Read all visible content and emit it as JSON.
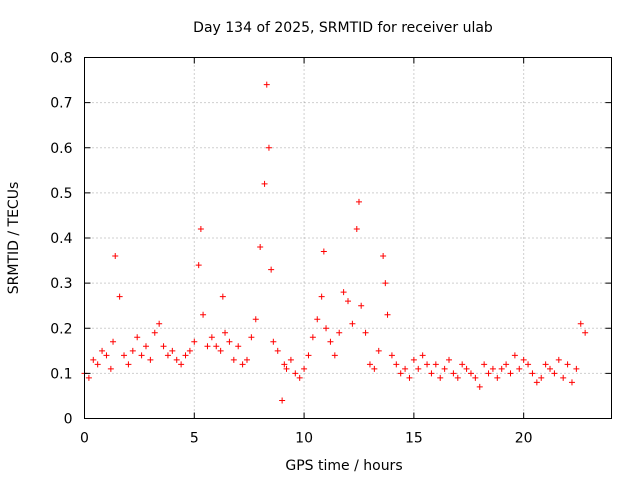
{
  "chart_data": {
    "type": "scatter",
    "title": "Day 134 of 2025, SRMTID for receiver ulab",
    "xlabel": "GPS time / hours",
    "ylabel": "SRMTID / TECUs",
    "xlim": [
      0,
      24
    ],
    "ylim": [
      0,
      0.8
    ],
    "xticks": [
      0,
      5,
      10,
      15,
      20
    ],
    "yticks": [
      0,
      0.1,
      0.2,
      0.3,
      0.4,
      0.5,
      0.6,
      0.7,
      0.8
    ],
    "xtick_labels": [
      "0",
      "5",
      "10",
      "15",
      "20"
    ],
    "ytick_labels": [
      "0",
      "0.1",
      "0.2",
      "0.3",
      "0.4",
      "0.5",
      "0.6",
      "0.7",
      "0.8"
    ],
    "grid": true,
    "marker": "+",
    "color": "#ff0000",
    "series": [
      {
        "name": "SRMTID",
        "x": [
          0.0,
          0.2,
          0.4,
          0.6,
          0.8,
          1.0,
          1.2,
          1.3,
          1.4,
          1.6,
          1.8,
          2.0,
          2.2,
          2.4,
          2.6,
          2.8,
          3.0,
          3.2,
          3.4,
          3.6,
          3.8,
          4.0,
          4.2,
          4.4,
          4.6,
          4.8,
          5.0,
          5.2,
          5.3,
          5.4,
          5.6,
          5.8,
          6.0,
          6.2,
          6.3,
          6.4,
          6.6,
          6.8,
          7.0,
          7.2,
          7.4,
          7.6,
          7.8,
          8.0,
          8.2,
          8.3,
          8.4,
          8.5,
          8.6,
          8.8,
          9.0,
          9.1,
          9.2,
          9.4,
          9.6,
          9.8,
          10.0,
          10.2,
          10.4,
          10.6,
          10.8,
          10.9,
          11.0,
          11.2,
          11.4,
          11.6,
          11.8,
          12.0,
          12.2,
          12.4,
          12.5,
          12.6,
          12.8,
          13.0,
          13.2,
          13.4,
          13.6,
          13.7,
          13.8,
          14.0,
          14.2,
          14.4,
          14.6,
          14.8,
          15.0,
          15.2,
          15.4,
          15.6,
          15.8,
          16.0,
          16.2,
          16.4,
          16.6,
          16.8,
          17.0,
          17.2,
          17.4,
          17.6,
          17.8,
          18.0,
          18.2,
          18.4,
          18.6,
          18.8,
          19.0,
          19.2,
          19.4,
          19.6,
          19.8,
          20.0,
          20.2,
          20.4,
          20.6,
          20.8,
          21.0,
          21.2,
          21.4,
          21.6,
          21.8,
          22.0,
          22.2,
          22.4,
          22.6,
          22.8
        ],
        "y": [
          0.1,
          0.09,
          0.13,
          0.12,
          0.15,
          0.14,
          0.11,
          0.17,
          0.36,
          0.27,
          0.14,
          0.12,
          0.15,
          0.18,
          0.14,
          0.16,
          0.13,
          0.19,
          0.21,
          0.16,
          0.14,
          0.15,
          0.13,
          0.12,
          0.14,
          0.15,
          0.17,
          0.34,
          0.42,
          0.23,
          0.16,
          0.18,
          0.16,
          0.15,
          0.27,
          0.19,
          0.17,
          0.13,
          0.16,
          0.12,
          0.13,
          0.18,
          0.22,
          0.38,
          0.52,
          0.74,
          0.6,
          0.33,
          0.17,
          0.15,
          0.04,
          0.12,
          0.11,
          0.13,
          0.1,
          0.09,
          0.11,
          0.14,
          0.18,
          0.22,
          0.27,
          0.37,
          0.2,
          0.17,
          0.14,
          0.19,
          0.28,
          0.26,
          0.21,
          0.42,
          0.48,
          0.25,
          0.19,
          0.12,
          0.11,
          0.15,
          0.36,
          0.3,
          0.23,
          0.14,
          0.12,
          0.1,
          0.11,
          0.09,
          0.13,
          0.11,
          0.14,
          0.12,
          0.1,
          0.12,
          0.09,
          0.11,
          0.13,
          0.1,
          0.09,
          0.12,
          0.11,
          0.1,
          0.09,
          0.07,
          0.12,
          0.1,
          0.11,
          0.09,
          0.11,
          0.12,
          0.1,
          0.14,
          0.11,
          0.13,
          0.12,
          0.1,
          0.08,
          0.09,
          0.12,
          0.11,
          0.1,
          0.13,
          0.09,
          0.12,
          0.08,
          0.11,
          0.21,
          0.19
        ]
      }
    ]
  }
}
